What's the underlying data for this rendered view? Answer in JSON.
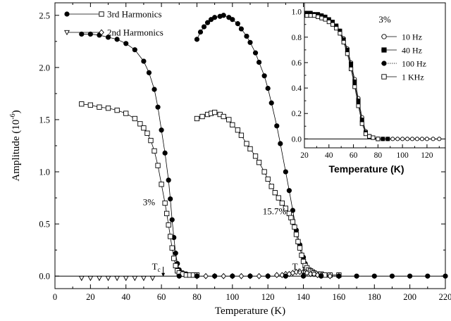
{
  "chart_data": [
    {
      "type": "scatter",
      "title": "",
      "xlabel": "Temperature (K)",
      "ylabel": "Amplitude (10",
      "ylabel_sup": "-6",
      "ylabel_close": ")",
      "xlim": [
        0,
        220
      ],
      "ylim": [
        -0.12,
        2.62
      ],
      "xticks": [
        0,
        20,
        40,
        60,
        80,
        100,
        120,
        140,
        160,
        180,
        200,
        220
      ],
      "yticks": [
        0.0,
        0.5,
        1.0,
        1.5,
        2.0,
        2.5
      ],
      "ytick_labels": [
        "0.0",
        "0.5",
        "1.0",
        "1.5",
        "2.0",
        "2.5"
      ],
      "grid": false,
      "legend_position": "top-left",
      "legend_3rd": "3rd Harmonics",
      "legend_2nd": "2nd Harmonics",
      "annotations": {
        "label_3pct": "3%",
        "label_157pct": "15.7%",
        "tc_letter": "T",
        "tc_sub": "c"
      },
      "series": [
        {
          "name": "3% 3rd harmonic (filled circles)",
          "x": [
            15,
            20,
            25,
            30,
            35,
            40,
            45,
            50,
            53,
            56,
            58,
            60,
            62,
            64,
            65,
            66,
            67,
            68,
            69,
            70,
            72,
            74,
            76,
            78,
            80
          ],
          "y": [
            2.32,
            2.32,
            2.31,
            2.29,
            2.27,
            2.23,
            2.17,
            2.06,
            1.95,
            1.79,
            1.62,
            1.4,
            1.18,
            0.92,
            0.74,
            0.54,
            0.37,
            0.22,
            0.12,
            0.06,
            0.03,
            0.02,
            0.01,
            0.01,
            0.01
          ]
        },
        {
          "name": "3% 3rd harmonic (open squares)",
          "x": [
            15,
            20,
            25,
            30,
            35,
            40,
            45,
            48,
            50,
            52,
            54,
            56,
            58,
            60,
            62,
            63,
            64,
            65,
            66,
            67,
            68,
            69,
            70,
            72,
            74,
            76,
            78,
            80
          ],
          "y": [
            1.65,
            1.64,
            1.62,
            1.61,
            1.59,
            1.56,
            1.51,
            1.46,
            1.42,
            1.37,
            1.3,
            1.2,
            1.06,
            0.88,
            0.7,
            0.6,
            0.49,
            0.38,
            0.27,
            0.17,
            0.1,
            0.05,
            0.03,
            0.02,
            0.01,
            0.01,
            0.01,
            0.01
          ]
        },
        {
          "name": "15.7% 3rd harmonic (filled circles)",
          "x": [
            80,
            82,
            84,
            86,
            88,
            90,
            93,
            95,
            98,
            100,
            103,
            105,
            108,
            110,
            113,
            115,
            118,
            120,
            122,
            125,
            127,
            130,
            132,
            134,
            136,
            138,
            140,
            141,
            142,
            143,
            144,
            145,
            146,
            148,
            150,
            155,
            160
          ],
          "y": [
            2.27,
            2.34,
            2.39,
            2.43,
            2.46,
            2.48,
            2.49,
            2.5,
            2.48,
            2.46,
            2.42,
            2.37,
            2.3,
            2.24,
            2.14,
            2.05,
            1.92,
            1.8,
            1.66,
            1.44,
            1.27,
            1.0,
            0.82,
            0.63,
            0.44,
            0.3,
            0.18,
            0.12,
            0.08,
            0.05,
            0.04,
            0.03,
            0.02,
            0.02,
            0.01,
            0.01,
            0.01
          ]
        },
        {
          "name": "15.7% 3rd harmonic (open squares)",
          "x": [
            80,
            83,
            86,
            88,
            90,
            93,
            95,
            98,
            100,
            103,
            105,
            108,
            110,
            113,
            115,
            118,
            120,
            122,
            124,
            126,
            128,
            130,
            132,
            133,
            134,
            135,
            136,
            137,
            138,
            139,
            140,
            141,
            142,
            143,
            144,
            145,
            146,
            148,
            150,
            152,
            155,
            160
          ],
          "y": [
            1.51,
            1.53,
            1.55,
            1.56,
            1.57,
            1.55,
            1.53,
            1.5,
            1.45,
            1.4,
            1.35,
            1.27,
            1.22,
            1.15,
            1.09,
            1.0,
            0.93,
            0.86,
            0.8,
            0.75,
            0.7,
            0.65,
            0.6,
            0.56,
            0.52,
            0.47,
            0.4,
            0.33,
            0.27,
            0.2,
            0.14,
            0.1,
            0.08,
            0.06,
            0.05,
            0.04,
            0.03,
            0.02,
            0.02,
            0.01,
            0.01,
            0.01
          ]
        },
        {
          "name": "2nd harmonic (open triangles)",
          "x": [
            15,
            20,
            25,
            30,
            35,
            40,
            45,
            50,
            55
          ],
          "y": [
            -0.02,
            -0.02,
            -0.02,
            -0.02,
            -0.02,
            -0.02,
            -0.02,
            -0.02,
            -0.02
          ]
        },
        {
          "name": "2nd harmonic (open diamonds)",
          "x": [
            80,
            85,
            90,
            95,
            100,
            105,
            110,
            115,
            120,
            125,
            128,
            130,
            132,
            134,
            136,
            138,
            140,
            142,
            144,
            146,
            148,
            150,
            155,
            160
          ],
          "y": [
            0.0,
            0.0,
            0.0,
            0.0,
            0.0,
            0.0,
            0.0,
            0.0,
            0.0,
            0.01,
            0.01,
            0.02,
            0.02,
            0.03,
            0.04,
            0.04,
            0.04,
            0.03,
            0.02,
            0.02,
            0.01,
            0.01,
            0.0,
            0.0
          ]
        },
        {
          "name": "baseline (filled circles)",
          "x": [
            70,
            80,
            90,
            100,
            110,
            120,
            130,
            140,
            150,
            160,
            170,
            180,
            190,
            200,
            210,
            220
          ],
          "y": [
            0,
            0,
            0,
            0,
            0,
            0,
            0,
            0,
            0,
            0,
            0,
            0,
            0,
            0,
            0,
            0
          ]
        }
      ]
    },
    {
      "type": "scatter",
      "title": "3%",
      "xlabel": "Temperature (K)",
      "ylabel": "",
      "xlim": [
        20,
        135
      ],
      "ylim": [
        -0.07,
        1.07
      ],
      "xticks": [
        20,
        40,
        60,
        80,
        100,
        120
      ],
      "yticks": [
        0.0,
        0.2,
        0.4,
        0.6,
        0.8,
        1.0
      ],
      "ytick_labels": [
        "0.0",
        "0.2",
        "0.4",
        "0.6",
        "0.8",
        "1.0"
      ],
      "legend_position": "top-right",
      "series": [
        {
          "name": "10 Hz",
          "marker": "open-circle",
          "x": [
            22,
            25,
            28,
            31,
            34,
            37,
            40,
            43,
            46,
            49,
            52,
            55,
            58,
            61,
            64,
            67,
            70,
            73,
            76,
            80,
            84,
            88,
            92,
            96,
            100,
            104,
            108,
            112,
            116,
            120,
            125,
            130
          ],
          "y": [
            0.99,
            0.99,
            0.98,
            0.98,
            0.97,
            0.96,
            0.94,
            0.92,
            0.89,
            0.85,
            0.79,
            0.71,
            0.6,
            0.47,
            0.32,
            0.17,
            0.06,
            0.02,
            0.01,
            0.0,
            0.0,
            0.0,
            0.0,
            0.0,
            0.0,
            0.0,
            0.0,
            0.0,
            0.0,
            0.0,
            0.0,
            0.0
          ]
        },
        {
          "name": "40 Hz",
          "marker": "filled-square",
          "x": [
            22,
            25,
            28,
            31,
            34,
            37,
            40,
            43,
            46,
            49,
            52,
            55,
            58,
            61,
            64,
            67,
            70,
            73,
            76,
            80,
            84,
            88
          ],
          "y": [
            0.99,
            0.99,
            0.98,
            0.98,
            0.97,
            0.96,
            0.94,
            0.92,
            0.89,
            0.85,
            0.78,
            0.7,
            0.59,
            0.45,
            0.3,
            0.15,
            0.05,
            0.02,
            0.01,
            0.0,
            0.0,
            0.0
          ]
        },
        {
          "name": "100 Hz",
          "marker": "filled-circle",
          "x": [
            22,
            25,
            28,
            31,
            34,
            37,
            40,
            43,
            46,
            49,
            52,
            55,
            58,
            61,
            64,
            67,
            70,
            73,
            76,
            80
          ],
          "y": [
            0.98,
            0.98,
            0.98,
            0.97,
            0.96,
            0.95,
            0.93,
            0.91,
            0.88,
            0.84,
            0.77,
            0.69,
            0.57,
            0.43,
            0.28,
            0.14,
            0.05,
            0.02,
            0.01,
            0.0
          ]
        },
        {
          "name": "1 KHz",
          "marker": "open-square",
          "x": [
            22,
            25,
            28,
            31,
            34,
            37,
            40,
            43,
            46,
            49,
            52,
            55,
            58,
            61,
            64,
            67,
            70,
            73,
            76,
            80
          ],
          "y": [
            0.97,
            0.97,
            0.97,
            0.96,
            0.95,
            0.94,
            0.92,
            0.9,
            0.87,
            0.83,
            0.76,
            0.67,
            0.55,
            0.41,
            0.26,
            0.12,
            0.04,
            0.02,
            0.01,
            0.0
          ]
        }
      ]
    }
  ]
}
